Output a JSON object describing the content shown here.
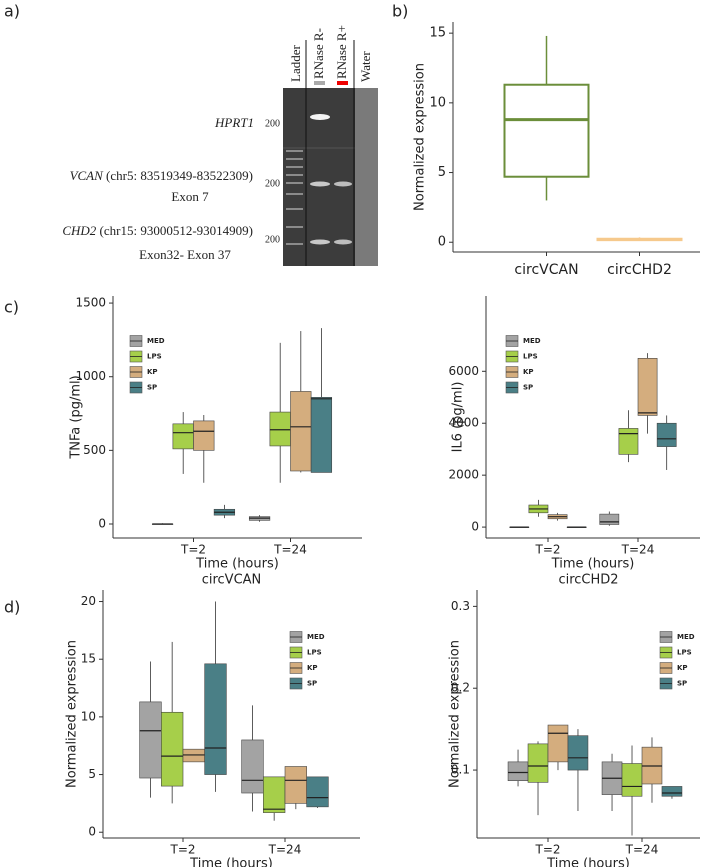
{
  "panel_labels": [
    "a)",
    "b)",
    "c)",
    "d)"
  ],
  "gel": {
    "lanes": [
      "Ladder",
      "RNase R-",
      "RNase R+",
      "Water"
    ],
    "size_marker": [
      200,
      200,
      200
    ],
    "targets": [
      {
        "gene": "HPRT1"
      },
      {
        "gene": "VCAN",
        "locus": "(chr5: 83519349-83522309)",
        "exon": "Exon 7"
      },
      {
        "gene": "CHD2",
        "locus": "(chr15: 93000512-93014909)",
        "exon": "Exon32- Exon 37"
      }
    ]
  },
  "chart_data": [
    {
      "type": "box",
      "ylabel": "Normalized expression",
      "categories": [
        "circVCAN",
        "circCHD2"
      ],
      "colors": [
        "#6b8e3a",
        "#f6c98c"
      ],
      "values": [
        [
          3,
          4.7,
          8.8,
          11.3,
          14.8
        ],
        [
          0.1,
          0.15,
          0.2,
          0.25,
          0.35
        ]
      ],
      "ylim": [
        -0.7,
        15.8
      ],
      "yticks": [
        0,
        5,
        10,
        15
      ]
    },
    {
      "type": "box",
      "ylabel": "TNFa (pg/ml)",
      "xlabel": "Time (hours)",
      "categories": [
        "T=2",
        "T=24"
      ],
      "series": [
        {
          "name": "MED",
          "color": "#a3a3a3",
          "values": [
            [
              0,
              0,
              0,
              0,
              5
            ],
            [
              15,
              25,
              40,
              50,
              60
            ]
          ]
        },
        {
          "name": "LPS",
          "color": "#a6cf4a",
          "values": [
            [
              340,
              510,
              620,
              680,
              760
            ],
            [
              280,
              530,
              640,
              760,
              1230
            ]
          ]
        },
        {
          "name": "KP",
          "color": "#d4ad7e",
          "values": [
            [
              280,
              500,
              630,
              700,
              740
            ],
            [
              350,
              360,
              660,
              900,
              1310
            ]
          ]
        },
        {
          "name": "SP",
          "color": "#4a7f86",
          "values": [
            [
              40,
              60,
              80,
              100,
              130
            ],
            [
              350,
              350,
              850,
              860,
              1330
            ]
          ]
        }
      ],
      "ylim": [
        -95,
        1548
      ],
      "yticks": [
        0,
        500,
        1000,
        1500
      ],
      "legend": "upper left"
    },
    {
      "type": "box",
      "ylabel": "IL6 (pg/ml)",
      "xlabel": "Time (hours)",
      "categories": [
        "T=2",
        "T=24"
      ],
      "series": [
        {
          "name": "MED",
          "color": "#a3a3a3",
          "values": [
            [
              0,
              0,
              0,
              0,
              10
            ],
            [
              50,
              100,
              200,
              500,
              600
            ]
          ]
        },
        {
          "name": "LPS",
          "color": "#a6cf4a",
          "values": [
            [
              400,
              550,
              700,
              850,
              1050
            ],
            [
              2500,
              2800,
              3600,
              3800,
              4500
            ]
          ]
        },
        {
          "name": "KP",
          "color": "#d4ad7e",
          "values": [
            [
              250,
              320,
              400,
              480,
              550
            ],
            [
              3600,
              4300,
              4400,
              6500,
              6700
            ]
          ]
        },
        {
          "name": "SP",
          "color": "#4a7f86",
          "values": [
            [
              0,
              0,
              0,
              0,
              10
            ],
            [
              2200,
              3100,
              3400,
              4000,
              4300
            ]
          ]
        }
      ],
      "ylim": [
        -420,
        8900
      ],
      "yticks": [
        0,
        2000,
        4000,
        6000
      ],
      "legend": "upper left"
    },
    {
      "type": "box",
      "title": "circVCAN",
      "ylabel": "Normalized expression",
      "xlabel": "Time (hours)",
      "categories": [
        "T=2",
        "T=24"
      ],
      "series": [
        {
          "name": "MED",
          "color": "#a3a3a3",
          "values": [
            [
              3,
              4.7,
              8.8,
              11.3,
              14.8
            ],
            [
              1.8,
              3.4,
              4.5,
              8,
              11
            ]
          ]
        },
        {
          "name": "LPS",
          "color": "#a6cf4a",
          "values": [
            [
              2.5,
              4,
              6.6,
              10.4,
              16.5
            ],
            [
              1,
              1.7,
              2,
              4.8,
              4.8
            ]
          ]
        },
        {
          "name": "KP",
          "color": "#d4ad7e",
          "values": [
            [
              6.1,
              6.1,
              6.7,
              7.2,
              7.2
            ],
            [
              2,
              2.5,
              4.5,
              5.7,
              5.7
            ]
          ]
        },
        {
          "name": "SP",
          "color": "#4a7f86",
          "values": [
            [
              3.5,
              5,
              7.3,
              14.6,
              20
            ],
            [
              2.1,
              2.2,
              3,
              4.8,
              4.8
            ]
          ]
        }
      ],
      "ylim": [
        -0.5,
        21
      ],
      "yticks": [
        0,
        5,
        10,
        15,
        20
      ],
      "legend": "upper right"
    },
    {
      "type": "box",
      "title": "circCHD2",
      "ylabel": "Normalized expression",
      "xlabel": "Time (hours)",
      "categories": [
        "T=2",
        "T=24"
      ],
      "series": [
        {
          "name": "MED",
          "color": "#a3a3a3",
          "values": [
            [
              0.08,
              0.087,
              0.097,
              0.11,
              0.125
            ],
            [
              0.05,
              0.07,
              0.09,
              0.11,
              0.12
            ]
          ]
        },
        {
          "name": "LPS",
          "color": "#a6cf4a",
          "values": [
            [
              0.045,
              0.085,
              0.105,
              0.132,
              0.135
            ],
            [
              0.02,
              0.068,
              0.08,
              0.108,
              0.13
            ]
          ]
        },
        {
          "name": "KP",
          "color": "#d4ad7e",
          "values": [
            [
              0.1,
              0.11,
              0.145,
              0.155,
              0.155
            ],
            [
              0.06,
              0.083,
              0.105,
              0.128,
              0.14
            ]
          ]
        },
        {
          "name": "SP",
          "color": "#4a7f86",
          "values": [
            [
              0.05,
              0.1,
              0.115,
              0.142,
              0.15
            ],
            [
              0.065,
              0.068,
              0.072,
              0.08,
              0.08
            ]
          ]
        }
      ],
      "ylim": [
        0.017,
        0.32
      ],
      "yticks": [
        0.1,
        0.2,
        0.3
      ],
      "legend": "upper right"
    }
  ]
}
